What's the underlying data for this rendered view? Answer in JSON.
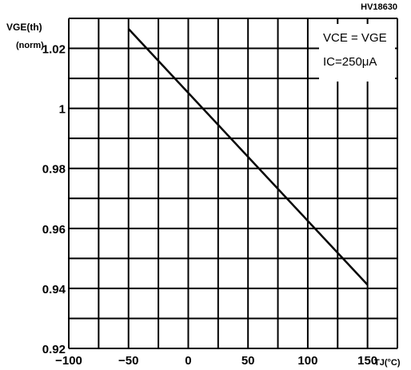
{
  "chart_data": {
    "type": "line",
    "part_number": "HV18630",
    "ylabel_line1": "VGE(th)",
    "ylabel_line2": "(norm)",
    "xlabel": "TJ(°C)",
    "xlim": [
      -100,
      175
    ],
    "ylim": [
      0.92,
      1.03
    ],
    "x_ticks": [
      -100,
      -50,
      0,
      50,
      100,
      150
    ],
    "y_ticks": [
      0.92,
      0.94,
      0.96,
      0.98,
      1,
      1.02
    ],
    "x_tick_labels": [
      "−100",
      "−50",
      "0",
      "50",
      "100",
      "150"
    ],
    "y_tick_labels": [
      "0.92",
      "0.94",
      "0.96",
      "0.98",
      "1",
      "1.02"
    ],
    "x_grid": [
      -100,
      -75,
      -50,
      -25,
      0,
      25,
      50,
      75,
      100,
      125,
      150,
      175
    ],
    "y_grid": [
      0.92,
      0.93,
      0.94,
      0.95,
      0.96,
      0.97,
      0.98,
      0.99,
      1.0,
      1.01,
      1.02,
      1.03
    ],
    "grid": true,
    "annotations": [
      "VCE = VGE",
      "IC=250μA"
    ],
    "series": [
      {
        "x": [
          -50,
          150
        ],
        "y": [
          1.0265,
          0.9412
        ]
      }
    ]
  }
}
